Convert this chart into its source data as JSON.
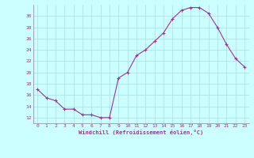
{
  "x": [
    0,
    1,
    2,
    3,
    4,
    5,
    6,
    7,
    8,
    9,
    10,
    11,
    12,
    13,
    14,
    15,
    16,
    17,
    18,
    19,
    20,
    21,
    22,
    23
  ],
  "y": [
    17.0,
    15.5,
    15.0,
    13.5,
    13.5,
    12.5,
    12.5,
    12.0,
    12.0,
    19.0,
    20.0,
    23.0,
    24.0,
    25.5,
    27.0,
    29.5,
    31.0,
    31.5,
    31.5,
    30.5,
    28.0,
    25.0,
    22.5,
    21.0
  ],
  "line_color": "#993399",
  "marker": "+",
  "marker_size": 3,
  "linewidth": 0.8,
  "bg_color": "#ccffff",
  "grid_color": "#aadddd",
  "xlabel": "Windchill (Refroidissement éolien,°C)",
  "xlabel_color": "#993399",
  "tick_color": "#993399",
  "spine_color": "#888888",
  "ylim": [
    11,
    32
  ],
  "yticks": [
    12,
    14,
    16,
    18,
    20,
    22,
    24,
    26,
    28,
    30
  ],
  "xlim": [
    -0.5,
    23.5
  ],
  "xticks": [
    0,
    1,
    2,
    3,
    4,
    5,
    6,
    7,
    8,
    9,
    10,
    11,
    12,
    13,
    14,
    15,
    16,
    17,
    18,
    19,
    20,
    21,
    22,
    23
  ]
}
